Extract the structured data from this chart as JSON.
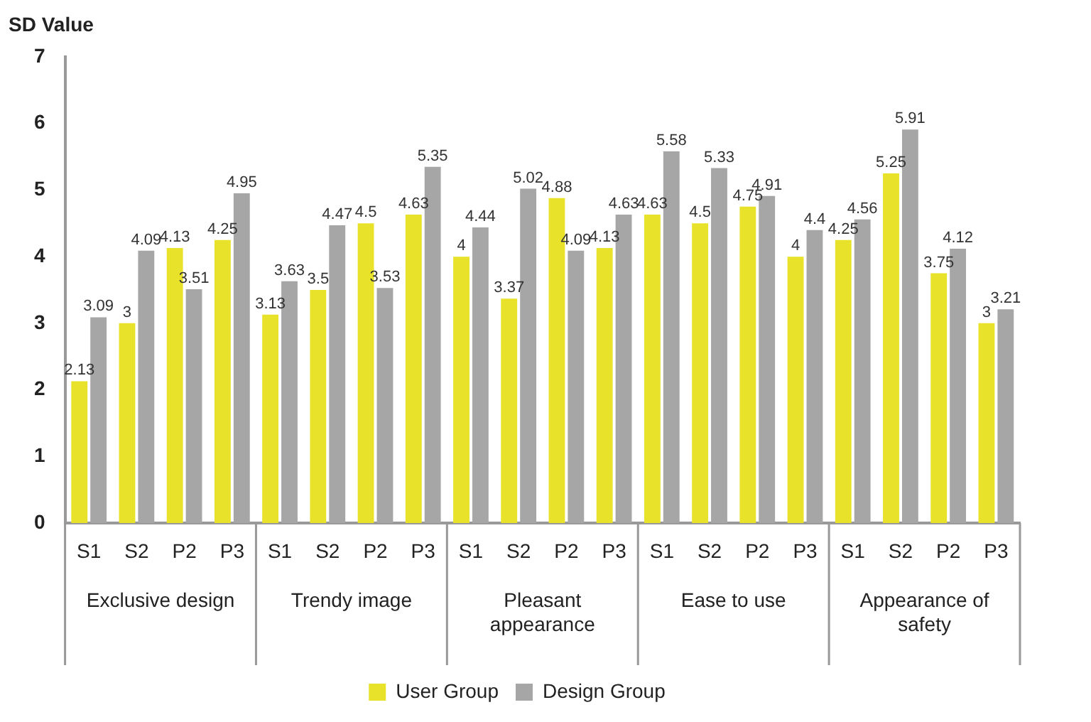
{
  "chart_data": {
    "type": "bar",
    "ylabel": "SD Value",
    "categories": [
      "S1",
      "S2",
      "P2",
      "P3",
      "S1",
      "S2",
      "P2",
      "P3",
      "S1",
      "S2",
      "P2",
      "P3",
      "S1",
      "S2",
      "P2",
      "P3",
      "S1",
      "S2",
      "P2",
      "P3"
    ],
    "annotations": [
      "Exclusive design",
      "Trendy image",
      "Pleasant appearance",
      "Ease to use",
      "Appearance of safety"
    ],
    "series": [
      {
        "name": "User Group",
        "color": "#e8e22a",
        "values": [
          2.13,
          3,
          4.13,
          4.25,
          3.13,
          3.5,
          4.5,
          4.63,
          4,
          3.37,
          4.88,
          4.13,
          4.63,
          4.5,
          4.75,
          4,
          4.25,
          5.25,
          3.75,
          3
        ]
      },
      {
        "name": "Design Group",
        "color": "#a6a6a6",
        "values": [
          3.09,
          4.09,
          3.51,
          4.95,
          3.63,
          4.47,
          3.53,
          5.35,
          4.44,
          5.02,
          4.09,
          4.63,
          5.58,
          5.33,
          4.91,
          4.4,
          4.56,
          5.91,
          4.12,
          3.21
        ]
      }
    ],
    "ylim": [
      0,
      7
    ],
    "yticks": [
      0,
      1,
      2,
      3,
      4,
      5,
      6,
      7
    ],
    "grid": false,
    "legend": "bottom",
    "data_labels": true
  }
}
